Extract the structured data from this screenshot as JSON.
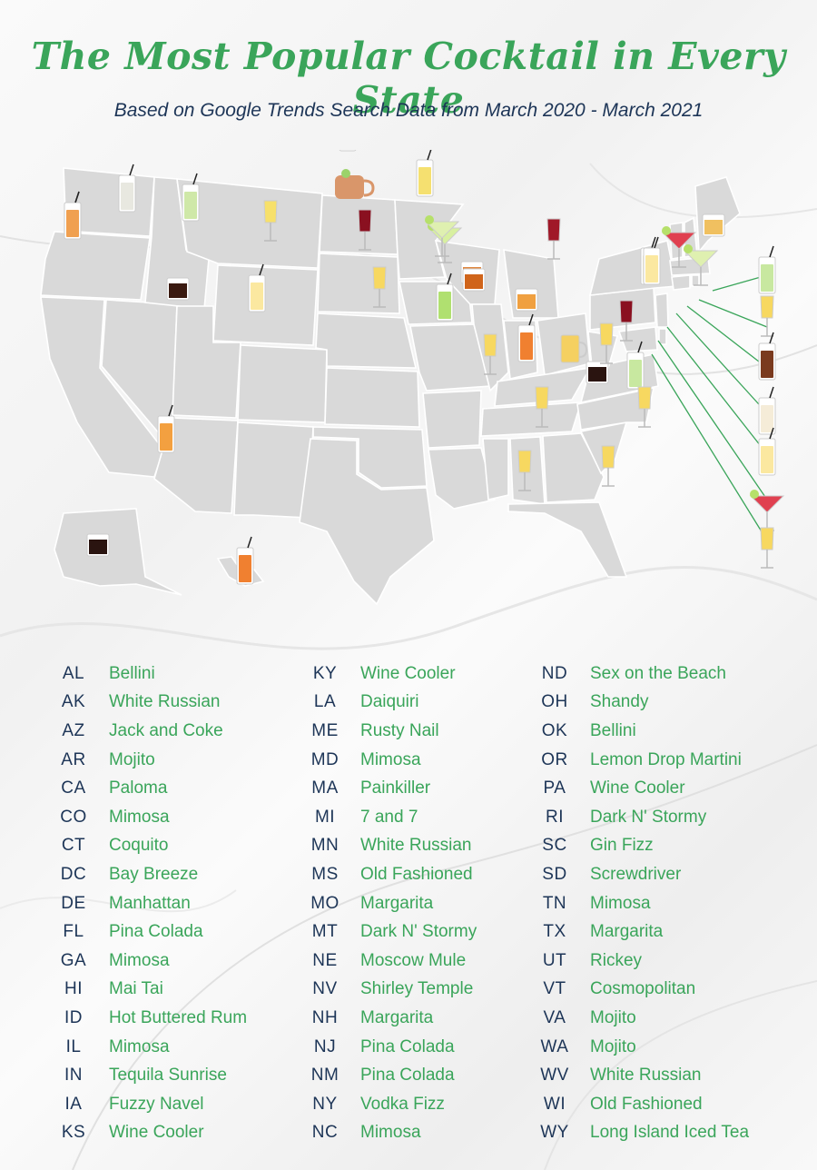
{
  "title": "The Most Popular Cocktail in Every State",
  "subtitle": "Based on Google Trends Search Data from March 2020 - March 2021",
  "colors": {
    "title": "#3aa55a",
    "state_abbr": "#1d3557",
    "cocktail_name": "#3aa55a",
    "state_fill": "#d9d9d9",
    "state_border": "#ffffff",
    "pointer_lines": "#3aa55a"
  },
  "legend": {
    "columns": [
      [
        {
          "state": "AL",
          "cocktail": "Bellini"
        },
        {
          "state": "AK",
          "cocktail": "White Russian"
        },
        {
          "state": "AZ",
          "cocktail": "Jack and Coke"
        },
        {
          "state": "AR",
          "cocktail": "Mojito"
        },
        {
          "state": "CA",
          "cocktail": "Paloma"
        },
        {
          "state": "CO",
          "cocktail": "Mimosa"
        },
        {
          "state": "CT",
          "cocktail": "Coquito"
        },
        {
          "state": "DC",
          "cocktail": "Bay Breeze"
        },
        {
          "state": "DE",
          "cocktail": "Manhattan"
        },
        {
          "state": "FL",
          "cocktail": "Pina Colada"
        },
        {
          "state": "GA",
          "cocktail": "Mimosa"
        },
        {
          "state": "HI",
          "cocktail": "Mai Tai"
        },
        {
          "state": "ID",
          "cocktail": "Hot Buttered Rum"
        },
        {
          "state": "IL",
          "cocktail": "Mimosa"
        },
        {
          "state": "IN",
          "cocktail": "Tequila Sunrise"
        },
        {
          "state": "IA",
          "cocktail": "Fuzzy Navel"
        },
        {
          "state": "KS",
          "cocktail": "Wine Cooler"
        }
      ],
      [
        {
          "state": "KY",
          "cocktail": "Wine Cooler"
        },
        {
          "state": "LA",
          "cocktail": "Daiquiri"
        },
        {
          "state": "ME",
          "cocktail": "Rusty Nail"
        },
        {
          "state": "MD",
          "cocktail": "Mimosa"
        },
        {
          "state": "MA",
          "cocktail": "Painkiller"
        },
        {
          "state": "MI",
          "cocktail": "7 and 7"
        },
        {
          "state": "MN",
          "cocktail": "White Russian"
        },
        {
          "state": "MS",
          "cocktail": "Old Fashioned"
        },
        {
          "state": "MO",
          "cocktail": "Margarita"
        },
        {
          "state": "MT",
          "cocktail": "Dark N' Stormy"
        },
        {
          "state": "NE",
          "cocktail": "Moscow Mule"
        },
        {
          "state": "NV",
          "cocktail": "Shirley Temple"
        },
        {
          "state": "NH",
          "cocktail": "Margarita"
        },
        {
          "state": "NJ",
          "cocktail": "Pina Colada"
        },
        {
          "state": "NM",
          "cocktail": "Pina Colada"
        },
        {
          "state": "NY",
          "cocktail": "Vodka Fizz"
        },
        {
          "state": "NC",
          "cocktail": "Mimosa"
        }
      ],
      [
        {
          "state": "ND",
          "cocktail": "Sex on the Beach"
        },
        {
          "state": "OH",
          "cocktail": "Shandy"
        },
        {
          "state": "OK",
          "cocktail": "Bellini"
        },
        {
          "state": "OR",
          "cocktail": "Lemon Drop Martini"
        },
        {
          "state": "PA",
          "cocktail": "Wine Cooler"
        },
        {
          "state": "RI",
          "cocktail": "Dark N' Stormy"
        },
        {
          "state": "SC",
          "cocktail": "Gin Fizz"
        },
        {
          "state": "SD",
          "cocktail": "Screwdriver"
        },
        {
          "state": "TN",
          "cocktail": "Mimosa"
        },
        {
          "state": "TX",
          "cocktail": "Margarita"
        },
        {
          "state": "UT",
          "cocktail": "Rickey"
        },
        {
          "state": "VT",
          "cocktail": "Cosmopolitan"
        },
        {
          "state": "VA",
          "cocktail": "Mojito"
        },
        {
          "state": "WA",
          "cocktail": "Mojito"
        },
        {
          "state": "WV",
          "cocktail": "White Russian"
        },
        {
          "state": "WI",
          "cocktail": "Old Fashioned"
        },
        {
          "state": "WY",
          "cocktail": "Long Island Iced Tea"
        }
      ]
    ]
  },
  "map_icons": [
    {
      "glass": "collins",
      "color": "#b9e08a"
    },
    {
      "glass": "martini",
      "color": "#f5e07a"
    },
    {
      "glass": "mug",
      "color": "#f1d9a8"
    },
    {
      "glass": "collins",
      "color": "#e07a3a"
    },
    {
      "glass": "collins",
      "color": "#f0a050"
    },
    {
      "glass": "collins",
      "color": "#e8e8e0"
    },
    {
      "glass": "collins",
      "color": "#cfe8a8"
    },
    {
      "glass": "collins",
      "color": "#7a3a1e"
    },
    {
      "glass": "flute",
      "color": "#f7e06a"
    },
    {
      "glass": "rocks",
      "color": "#3a1a10"
    },
    {
      "glass": "hurricane",
      "color": "#fbe8a0"
    },
    {
      "glass": "hurricane",
      "color": "#f3a040"
    },
    {
      "glass": "collins",
      "color": "#f5d860"
    },
    {
      "glass": "moscow-mule",
      "color": "#d9966a"
    },
    {
      "glass": "wine",
      "color": "#8a1020"
    },
    {
      "glass": "flute",
      "color": "#f7d860"
    },
    {
      "glass": "margarita",
      "color": "#d8f0a0"
    },
    {
      "glass": "rocks",
      "color": "#2a1410"
    },
    {
      "glass": "collins",
      "color": "#f5e070"
    },
    {
      "glass": "rocks",
      "color": "#e08840"
    },
    {
      "glass": "flute",
      "color": "#f7d860"
    },
    {
      "glass": "margarita",
      "color": "#dff0b0"
    },
    {
      "glass": "collins",
      "color": "#b0e070"
    },
    {
      "glass": "rocks",
      "color": "#d0641a"
    },
    {
      "glass": "flute",
      "color": "#f7d860"
    },
    {
      "glass": "rocks",
      "color": "#f0a040"
    },
    {
      "glass": "collins",
      "color": "#f08030"
    },
    {
      "glass": "flute",
      "color": "#f7d860"
    },
    {
      "glass": "wine",
      "color": "#a01828"
    },
    {
      "glass": "pint",
      "color": "#f5d060"
    },
    {
      "glass": "rocks",
      "color": "#2a1410"
    },
    {
      "glass": "flute",
      "color": "#f7d860"
    },
    {
      "glass": "collins",
      "color": "#c8e8a0"
    },
    {
      "glass": "wine",
      "color": "#8a1020"
    },
    {
      "glass": "flute",
      "color": "#f7d860"
    },
    {
      "glass": "flute",
      "color": "#f7d860"
    },
    {
      "glass": "collins",
      "color": "#f5f0d0"
    },
    {
      "glass": "hurricane",
      "color": "#fbe8a0"
    },
    {
      "glass": "martini",
      "color": "#e04050"
    },
    {
      "glass": "margarita",
      "color": "#dff0b0"
    },
    {
      "glass": "rocks",
      "color": "#f0c060"
    },
    {
      "glass": "collins",
      "color": "#c8e8a0"
    },
    {
      "glass": "flute",
      "color": "#f7d860"
    },
    {
      "glass": "collins",
      "color": "#7a3a1e"
    },
    {
      "glass": "collins",
      "color": "#f5ecd8"
    },
    {
      "glass": "hurricane",
      "color": "#fbe8a0"
    },
    {
      "glass": "martini",
      "color": "#e04050"
    },
    {
      "glass": "flute",
      "color": "#f7d860"
    },
    {
      "glass": "hurricane",
      "color": "#f08030"
    },
    {
      "glass": "rocks",
      "color": "#2a1410"
    },
    {
      "glass": "hurricane",
      "color": "#f3a040"
    }
  ]
}
